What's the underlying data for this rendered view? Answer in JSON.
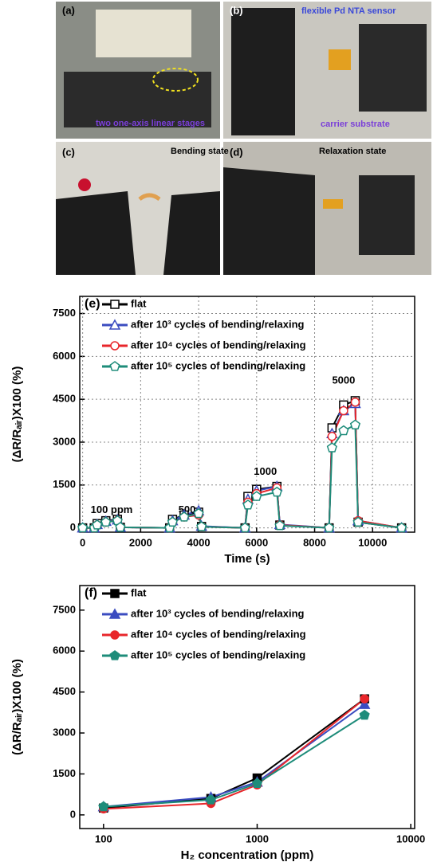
{
  "photos": [
    {
      "label": "(a)",
      "texts": [
        "two one-axis linear stages"
      ]
    },
    {
      "label": "(b)",
      "texts": [
        "flexible Pd NTA sensor",
        "carrier substrate"
      ]
    },
    {
      "label": "(c)",
      "texts": [
        "Bending state"
      ]
    },
    {
      "label": "(d)",
      "texts": [
        "Relaxation state"
      ]
    }
  ],
  "chart_data": [
    {
      "type": "line",
      "panel_label": "(e)",
      "x_label": "Time (s)",
      "y_label": "(ΔR/Rₐᵢᵣ)X100 (%)",
      "annotations": [
        "100 ppm",
        "500",
        "1000",
        "5000"
      ],
      "x": [
        0,
        400,
        500,
        800,
        1200,
        1300,
        3000,
        3100,
        3500,
        4000,
        4100,
        5600,
        5700,
        6000,
        6700,
        6800,
        8500,
        8600,
        9000,
        9400,
        9500,
        11000
      ],
      "series": [
        {
          "name": "flat",
          "color": "#000000",
          "marker": "square",
          "values": [
            0,
            0,
            150,
            250,
            300,
            20,
            0,
            300,
            450,
            550,
            50,
            0,
            1100,
            1350,
            1450,
            100,
            0,
            3500,
            4300,
            4450,
            200,
            0
          ]
        },
        {
          "name": "after 10³ cycles of bending/relaxing",
          "color": "#3b4cc0",
          "marker": "triangle",
          "values": [
            0,
            0,
            120,
            230,
            280,
            20,
            0,
            250,
            450,
            600,
            60,
            0,
            1000,
            1300,
            1450,
            120,
            0,
            3300,
            4100,
            4350,
            250,
            0
          ]
        },
        {
          "name": "after 10⁴ cycles of bending/relaxing",
          "color": "#e8262b",
          "marker": "circle",
          "values": [
            0,
            0,
            100,
            200,
            260,
            20,
            0,
            200,
            380,
            450,
            40,
            0,
            900,
            1200,
            1400,
            100,
            0,
            3200,
            4100,
            4400,
            250,
            0
          ]
        },
        {
          "name": "after 10⁵ cycles of bending/relaxing",
          "color": "#1e8c7a",
          "marker": "pentagon",
          "values": [
            0,
            0,
            100,
            200,
            250,
            20,
            0,
            200,
            380,
            500,
            40,
            0,
            800,
            1100,
            1250,
            80,
            0,
            2800,
            3400,
            3600,
            200,
            0
          ]
        }
      ],
      "marker_hollow": true,
      "grid": true,
      "log_x": false,
      "xlim": [
        -100,
        11450
      ],
      "xticks": [
        0,
        2000,
        4000,
        6000,
        8000,
        10000
      ],
      "ylim": [
        -150,
        8100
      ],
      "yticks": [
        0,
        1500,
        3000,
        4500,
        6000,
        7500
      ]
    },
    {
      "type": "line",
      "panel_label": "(f)",
      "x_label": "H₂ concentration (ppm)",
      "y_label": "(ΔR/Rₐᵢᵣ)X100 (%)",
      "x": [
        100,
        500,
        1000,
        5000
      ],
      "series": [
        {
          "name": "flat",
          "color": "#000000",
          "marker": "square",
          "values": [
            250,
            600,
            1350,
            4250
          ]
        },
        {
          "name": "after 10³ cycles of bending/relaxing",
          "color": "#3b4cc0",
          "marker": "triangle",
          "values": [
            300,
            650,
            1200,
            4050
          ]
        },
        {
          "name": "after 10⁴ cycles of bending/relaxing",
          "color": "#e8262b",
          "marker": "circle",
          "values": [
            220,
            420,
            1100,
            4250
          ]
        },
        {
          "name": "after 10⁵ cycles of bending/relaxing",
          "color": "#1e8c7a",
          "marker": "pentagon",
          "values": [
            300,
            550,
            1150,
            3650
          ]
        }
      ],
      "marker_hollow": false,
      "grid": false,
      "log_x": true,
      "xlim": [
        70,
        10600
      ],
      "xticks": [
        100,
        1000,
        10000
      ],
      "ylim": [
        -500,
        8400
      ],
      "yticks": [
        0,
        1500,
        3000,
        4500,
        6000,
        7500
      ]
    }
  ]
}
